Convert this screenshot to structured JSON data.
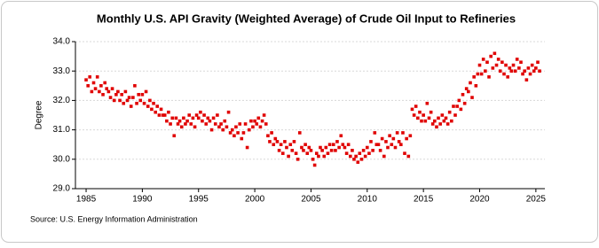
{
  "chart_data": {
    "type": "scatter",
    "title": "Monthly U.S. API Gravity (Weighted Average) of Crude Oil Input to Refineries",
    "y_label": "Degree",
    "source": "Source: U.S. Energy Information Administration",
    "color": "#e00000",
    "grid": true,
    "xlim": [
      1984.05,
      2025.8
    ],
    "ylim": [
      29,
      34
    ],
    "xticks": [
      1985,
      1990,
      1995,
      2000,
      2005,
      2010,
      2015,
      2020,
      2025
    ],
    "yticks": [
      {
        "value": 29,
        "label": "29.0"
      },
      {
        "value": 30,
        "label": "30.0"
      },
      {
        "value": 31,
        "label": "31.0"
      },
      {
        "value": 32,
        "label": "32.0"
      },
      {
        "value": 33,
        "label": "33.0"
      },
      {
        "value": 34,
        "label": "34.0"
      }
    ],
    "x": [
      1985,
      1985.17,
      1985.33,
      1985.5,
      1985.67,
      1985.83,
      1986,
      1986.17,
      1986.33,
      1986.5,
      1986.67,
      1986.83,
      1987,
      1987.17,
      1987.33,
      1987.5,
      1987.67,
      1987.83,
      1988,
      1988.17,
      1988.33,
      1988.5,
      1988.67,
      1988.83,
      1989,
      1989.17,
      1989.33,
      1989.5,
      1989.67,
      1989.83,
      1990,
      1990.17,
      1990.33,
      1990.5,
      1990.67,
      1990.83,
      1991,
      1991.17,
      1991.33,
      1991.5,
      1991.67,
      1991.83,
      1992,
      1992.17,
      1992.33,
      1992.5,
      1992.67,
      1992.83,
      1993,
      1993.17,
      1993.33,
      1993.5,
      1993.67,
      1993.83,
      1994,
      1994.17,
      1994.33,
      1994.5,
      1994.67,
      1994.83,
      1995,
      1995.17,
      1995.33,
      1995.5,
      1995.67,
      1995.83,
      1996,
      1996.17,
      1996.33,
      1996.5,
      1996.67,
      1996.83,
      1997,
      1997.17,
      1997.33,
      1997.5,
      1997.67,
      1997.83,
      1998,
      1998.17,
      1998.33,
      1998.5,
      1998.67,
      1998.83,
      1999,
      1999.17,
      1999.33,
      1999.5,
      1999.67,
      1999.83,
      2000,
      2000.17,
      2000.33,
      2000.5,
      2000.67,
      2000.83,
      2001,
      2001.17,
      2001.33,
      2001.5,
      2001.67,
      2001.83,
      2002,
      2002.17,
      2002.33,
      2002.5,
      2002.67,
      2002.83,
      2003,
      2003.17,
      2003.33,
      2003.5,
      2003.67,
      2003.83,
      2004,
      2004.17,
      2004.33,
      2004.5,
      2004.67,
      2004.83,
      2005,
      2005.17,
      2005.33,
      2005.5,
      2005.67,
      2005.83,
      2006,
      2006.17,
      2006.33,
      2006.5,
      2006.67,
      2006.83,
      2007,
      2007.17,
      2007.33,
      2007.5,
      2007.67,
      2007.83,
      2008,
      2008.17,
      2008.33,
      2008.5,
      2008.67,
      2008.83,
      2009,
      2009.17,
      2009.33,
      2009.5,
      2009.67,
      2009.83,
      2010,
      2010.17,
      2010.33,
      2010.5,
      2010.67,
      2010.83,
      2011,
      2011.17,
      2011.33,
      2011.5,
      2011.67,
      2011.83,
      2012,
      2012.17,
      2012.33,
      2012.5,
      2012.67,
      2012.83,
      2013,
      2013.17,
      2013.33,
      2013.5,
      2013.67,
      2013.83,
      2014,
      2014.17,
      2014.33,
      2014.5,
      2014.67,
      2014.83,
      2015,
      2015.17,
      2015.33,
      2015.5,
      2015.67,
      2015.83,
      2016,
      2016.17,
      2016.33,
      2016.5,
      2016.67,
      2016.83,
      2017,
      2017.17,
      2017.33,
      2017.5,
      2017.67,
      2017.83,
      2018,
      2018.17,
      2018.33,
      2018.5,
      2018.67,
      2018.83,
      2019,
      2019.17,
      2019.33,
      2019.5,
      2019.67,
      2019.83,
      2020,
      2020.17,
      2020.33,
      2020.5,
      2020.67,
      2020.83,
      2021,
      2021.17,
      2021.33,
      2021.5,
      2021.67,
      2021.83,
      2022,
      2022.17,
      2022.33,
      2022.5,
      2022.67,
      2022.83,
      2023,
      2023.17,
      2023.33,
      2023.5,
      2023.67,
      2023.83,
      2024,
      2024.17,
      2024.33,
      2024.5,
      2024.67,
      2024.83,
      2025,
      2025.17,
      2025.33
    ],
    "values": [
      32.7,
      32.5,
      32.8,
      32.3,
      32.6,
      32.4,
      32.8,
      32.3,
      32.5,
      32.2,
      32.6,
      32.4,
      32.3,
      32.1,
      32.4,
      32.0,
      32.2,
      32.3,
      32.0,
      32.2,
      31.9,
      32.3,
      32.0,
      32.1,
      31.8,
      32.1,
      32.5,
      31.9,
      32.2,
      32.0,
      32.2,
      31.9,
      32.3,
      31.8,
      32.0,
      31.7,
      31.9,
      31.6,
      31.8,
      31.5,
      31.7,
      31.5,
      31.5,
      31.3,
      31.6,
      31.2,
      31.4,
      30.8,
      31.4,
      31.2,
      31.3,
      31.1,
      31.4,
      31.2,
      31.3,
      31.5,
      31.2,
      31.4,
      31.1,
      31.5,
      31.4,
      31.6,
      31.3,
      31.5,
      31.2,
      31.4,
      31.3,
      31.0,
      31.4,
      31.2,
      31.5,
      31.1,
      31.2,
      31.0,
      31.3,
      31.1,
      31.6,
      30.9,
      31.0,
      30.8,
      31.1,
      30.9,
      31.2,
      30.7,
      30.9,
      31.2,
      30.4,
      31.0,
      31.3,
      31.1,
      31.3,
      31.2,
      31.4,
      31.1,
      31.3,
      31.5,
      31.2,
      30.8,
      30.6,
      30.9,
      30.5,
      30.7,
      30.6,
      30.3,
      30.5,
      30.2,
      30.6,
      30.4,
      30.1,
      30.5,
      30.3,
      30.6,
      30.2,
      30.0,
      30.9,
      30.4,
      30.3,
      30.5,
      30.2,
      30.4,
      30.3,
      30.0,
      29.8,
      30.2,
      30.1,
      30.4,
      30.3,
      30.1,
      30.4,
      30.2,
      30.5,
      30.3,
      30.5,
      30.3,
      30.6,
      30.4,
      30.8,
      30.5,
      30.4,
      30.2,
      30.5,
      30.1,
      30.3,
      30.0,
      30.1,
      29.9,
      30.2,
      30.0,
      30.3,
      30.1,
      30.4,
      30.2,
      30.6,
      30.3,
      30.9,
      30.5,
      30.5,
      30.3,
      30.7,
      30.1,
      30.6,
      30.4,
      30.8,
      30.5,
      30.7,
      30.4,
      30.9,
      30.6,
      30.5,
      30.9,
      30.2,
      30.7,
      30.1,
      30.8,
      31.7,
      31.5,
      31.8,
      31.4,
      31.6,
      31.3,
      31.5,
      31.3,
      31.9,
      31.4,
      31.6,
      31.2,
      31.3,
      31.1,
      31.4,
      31.2,
      31.5,
      31.3,
      31.4,
      31.2,
      31.6,
      31.3,
      31.8,
      31.5,
      31.8,
      32.0,
      31.7,
      32.2,
      31.9,
      32.4,
      32.3,
      32.6,
      32.1,
      32.8,
      32.5,
      32.9,
      33.2,
      32.9,
      33.4,
      33.0,
      33.3,
      32.8,
      33.5,
      33.1,
      33.6,
      33.2,
      33.4,
      33.0,
      33.3,
      32.9,
      33.2,
      32.8,
      33.1,
      33.0,
      33.2,
      33.0,
      33.4,
      33.1,
      33.3,
      32.9,
      33.0,
      32.7,
      33.1,
      32.9,
      33.2,
      33.0,
      33.1,
      33.3,
      33.0
    ]
  }
}
